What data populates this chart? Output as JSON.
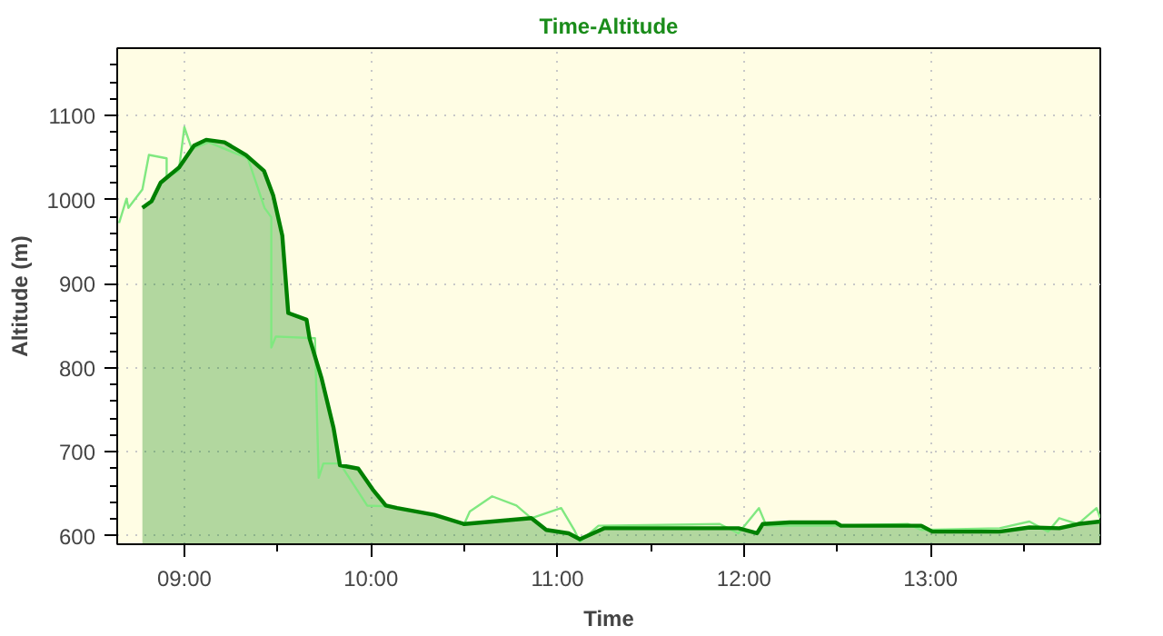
{
  "chart_data": {
    "type": "line",
    "title": "Time-Altitude",
    "xlabel": "Time",
    "ylabel": "Altitude (m)",
    "xlim": [
      8.64,
      13.91
    ],
    "ylim": [
      590,
      1180
    ],
    "xticks": [
      {
        "value": 9,
        "label": "09:00"
      },
      {
        "value": 9.5,
        "label": null
      },
      {
        "value": 10,
        "label": "10:00"
      },
      {
        "value": 10.5,
        "label": null
      },
      {
        "value": 11,
        "label": "11:00"
      },
      {
        "value": 11.5,
        "label": null
      },
      {
        "value": 12,
        "label": "12:00"
      },
      {
        "value": 12.5,
        "label": null
      },
      {
        "value": 13,
        "label": "13:00"
      },
      {
        "value": 13.5,
        "label": null
      }
    ],
    "yticks": [
      600,
      {
        "value": 620,
        "label": null
      },
      {
        "value": 640,
        "label": null
      },
      {
        "value": 660,
        "label": null
      },
      {
        "value": 680,
        "label": null
      },
      700,
      {
        "value": 720,
        "label": null
      },
      {
        "value": 740,
        "label": null
      },
      {
        "value": 760,
        "label": null
      },
      {
        "value": 780,
        "label": null
      },
      800,
      {
        "value": 820,
        "label": null
      },
      {
        "value": 840,
        "label": null
      },
      {
        "value": 860,
        "label": null
      },
      {
        "value": 880,
        "label": null
      },
      900,
      {
        "value": 920,
        "label": null
      },
      {
        "value": 940,
        "label": null
      },
      {
        "value": 960,
        "label": null
      },
      {
        "value": 980,
        "label": null
      },
      1000,
      {
        "value": 1020,
        "label": null
      },
      {
        "value": 1040,
        "label": null
      },
      {
        "value": 1060,
        "label": null
      },
      {
        "value": 1080,
        "label": null
      },
      1100,
      {
        "value": 1120,
        "label": null
      },
      {
        "value": 1140,
        "label": null
      },
      {
        "value": 1160,
        "label": null
      }
    ],
    "grid": true,
    "marker": "none",
    "line_style": "solid",
    "series": [
      {
        "color": "#80e880",
        "x": [
          8.65,
          8.69,
          8.7,
          8.775,
          8.81,
          8.905,
          8.905,
          8.97,
          9.0,
          9.04,
          9.13,
          9.34,
          9.43,
          9.466,
          9.466,
          9.49,
          9.7,
          9.72,
          9.745,
          9.834,
          9.98,
          10.1,
          10.34,
          10.5,
          10.53,
          10.65,
          10.78,
          10.86,
          11.02,
          11.09,
          11.12,
          11.22,
          11.87,
          11.97,
          12.08,
          12.12,
          12.49,
          12.88,
          12.95,
          13.37,
          13.53,
          13.63,
          13.69,
          13.79,
          13.89,
          13.91
        ],
        "values": [
          972,
          1001,
          990,
          1012,
          1053,
          1049,
          1027,
          1034,
          1086,
          1060,
          1068,
          1049,
          990,
          979,
          824,
          837,
          835,
          669,
          686,
          686,
          636,
          635,
          625,
          614,
          629,
          647,
          636,
          621,
          633,
          607,
          593,
          612,
          614,
          603,
          633,
          612,
          612,
          614,
          607,
          609,
          617,
          605,
          621,
          614,
          633,
          621
        ]
      },
      {
        "type": "area",
        "color": "#008000",
        "x": [
          8.775,
          8.824,
          8.873,
          8.971,
          9.052,
          9.117,
          9.215,
          9.33,
          9.427,
          9.476,
          9.525,
          9.557,
          9.655,
          9.671,
          9.736,
          9.8,
          9.834,
          9.932,
          10.01,
          10.08,
          10.14,
          10.34,
          10.5,
          10.86,
          10.94,
          11.06,
          11.12,
          11.25,
          11.97,
          12.07,
          12.1,
          12.245,
          12.49,
          12.52,
          12.95,
          13.01,
          13.37,
          13.53,
          13.69,
          13.79,
          13.91
        ],
        "values": [
          990,
          998,
          1020,
          1038,
          1064,
          1071,
          1068,
          1053,
          1034,
          1005,
          957,
          865,
          857,
          835,
          787,
          728,
          684,
          680,
          655,
          636,
          633,
          625,
          614,
          621,
          607,
          603,
          596,
          609,
          609,
          603,
          614,
          616,
          616,
          612,
          612,
          605,
          605,
          610,
          609,
          614,
          617
        ]
      }
    ]
  }
}
